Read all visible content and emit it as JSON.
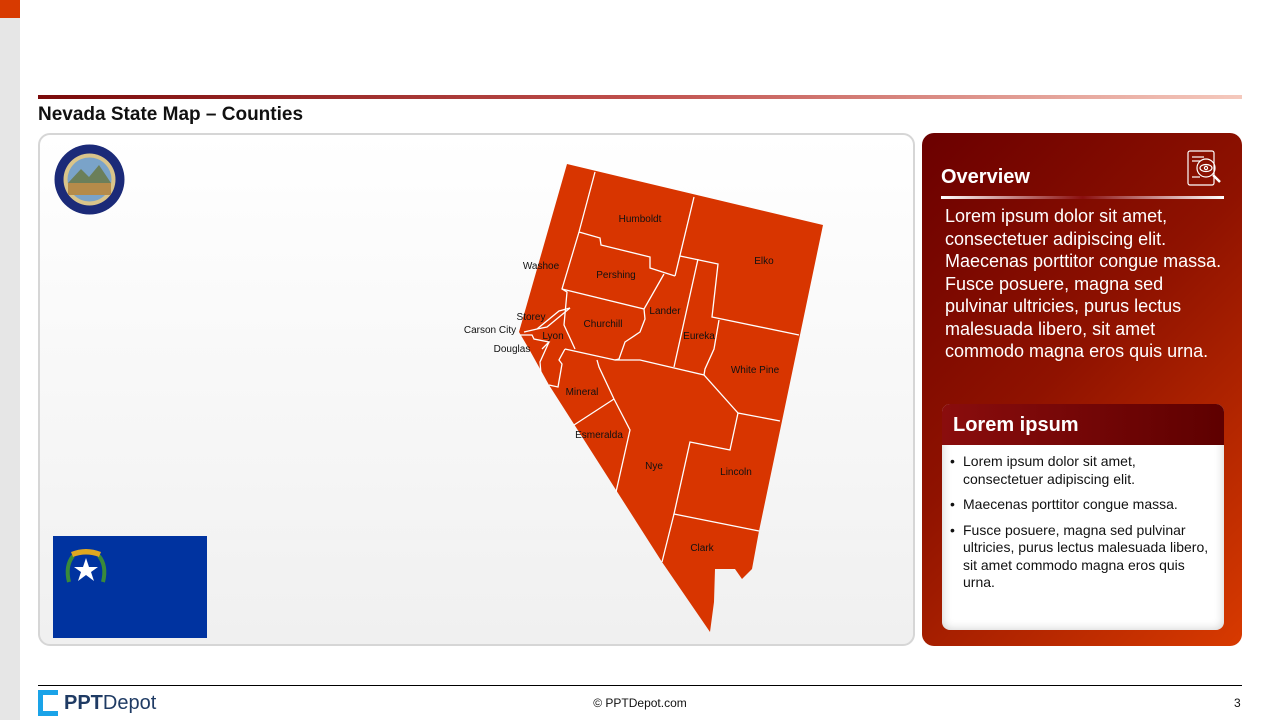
{
  "slide": {
    "title": "Nevada State Map – Counties",
    "page_number": "3"
  },
  "map": {
    "fill_color": "#d83500",
    "counties": [
      "Humboldt",
      "Elko",
      "Washoe",
      "Pershing",
      "Storey",
      "Carson City",
      "Lyon",
      "Douglas",
      "Churchill",
      "Lander",
      "Eureka",
      "White Pine",
      "Mineral",
      "Esmeralda",
      "Nye",
      "Lincoln",
      "Clark"
    ],
    "seal": "Nevada state seal",
    "flag": "Nevada state flag"
  },
  "overview": {
    "title": "Overview",
    "icon": "document-search-eye-icon",
    "body": "Lorem ipsum dolor sit amet, consectetuer adipiscing elit. Maecenas porttitor congue massa. Fusce posuere, magna sed pulvinar ultricies, purus lectus malesuada libero, sit amet commodo magna eros quis urna."
  },
  "card": {
    "title": "Lorem ipsum",
    "bullets": [
      "Lorem ipsum dolor sit amet, consectetuer adipiscing elit.",
      "Maecenas porttitor congue massa.",
      "Fusce posuere, magna sed pulvinar ultricies, purus lectus malesuada libero, sit amet commodo magna eros quis urna."
    ]
  },
  "footer": {
    "logo_bold": "PPT",
    "logo_light": "Depot",
    "copyright": "© PPTDepot.com"
  }
}
